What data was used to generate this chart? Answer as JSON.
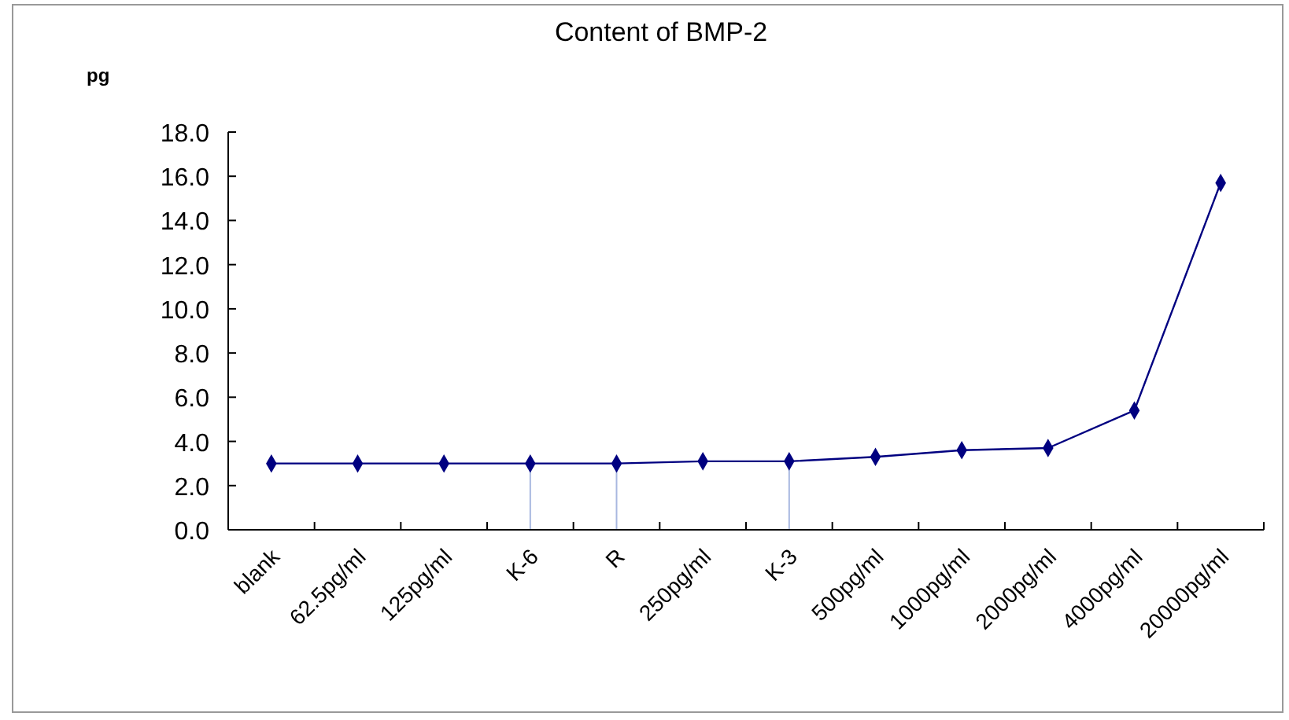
{
  "chart_data": {
    "type": "line",
    "title": "Content of BMP-2",
    "ylabel": "pg",
    "categories": [
      "blank",
      "62.5pg/ml",
      "125pg/ml",
      "K-6",
      "R",
      "250pg/ml",
      "K-3",
      "500pg/ml",
      "1000pg/ml",
      "2000pg/ml",
      "4000pg/ml",
      "20000pg/ml"
    ],
    "series": [
      {
        "color": "#000080",
        "values": [
          3.0,
          3.0,
          3.0,
          3.0,
          3.0,
          3.1,
          3.1,
          3.3,
          3.6,
          3.7,
          5.4,
          15.7
        ]
      }
    ],
    "ylim": [
      0,
      18
    ],
    "yticks": [
      {
        "value": 0,
        "label": "0.0"
      },
      {
        "value": 2,
        "label": "2.0"
      },
      {
        "value": 4,
        "label": "4.0"
      },
      {
        "value": 6,
        "label": "6.0"
      },
      {
        "value": 8,
        "label": "8.0"
      },
      {
        "value": 10,
        "label": "10.0"
      },
      {
        "value": 12,
        "label": "12.0"
      },
      {
        "value": 14,
        "label": "14.0"
      },
      {
        "value": 16,
        "label": "16.0"
      },
      {
        "value": 18,
        "label": "18.0"
      }
    ],
    "ref_lines": [
      {
        "axis": "x",
        "value": "K-6",
        "color": "#a8b8e0"
      },
      {
        "axis": "x",
        "value": "R",
        "color": "#a8b8e0"
      },
      {
        "axis": "x",
        "value": "K-3",
        "color": "#a8b8e0"
      }
    ],
    "marker": "diamond",
    "grid": false
  }
}
